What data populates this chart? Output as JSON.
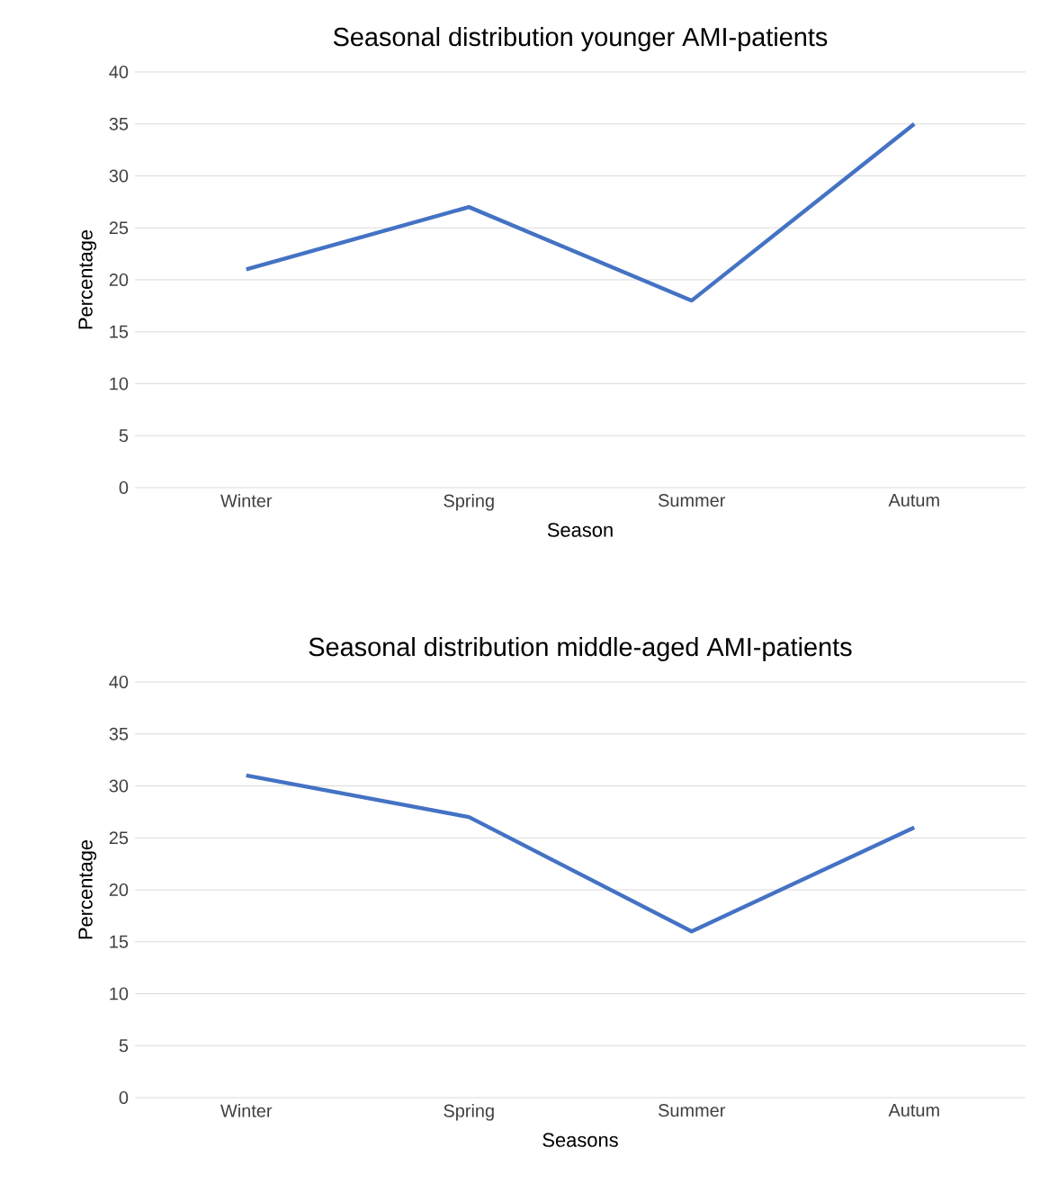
{
  "chart_data": [
    {
      "type": "line",
      "title": "Seasonal distribution younger AMI-patients",
      "xlabel": "Season",
      "ylabel": "Percentage",
      "categories": [
        "Winter",
        "Spring",
        "Summer",
        "Autum"
      ],
      "values": [
        21,
        27,
        18,
        35
      ],
      "color": "#4472c4",
      "ylim": [
        0,
        40
      ],
      "yticks": [
        0,
        5,
        10,
        15,
        20,
        25,
        30,
        35,
        40
      ],
      "grid": "y"
    },
    {
      "type": "line",
      "title": "Seasonal distribution middle-aged AMI-patients",
      "xlabel": "Seasons",
      "ylabel": "Percentage",
      "categories": [
        "Winter",
        "Spring",
        "Summer",
        "Autum"
      ],
      "values": [
        31,
        27,
        16,
        26
      ],
      "color": "#4472c4",
      "ylim": [
        0,
        40
      ],
      "yticks": [
        0,
        5,
        10,
        15,
        20,
        25,
        30,
        35,
        40
      ],
      "grid": "y"
    }
  ]
}
